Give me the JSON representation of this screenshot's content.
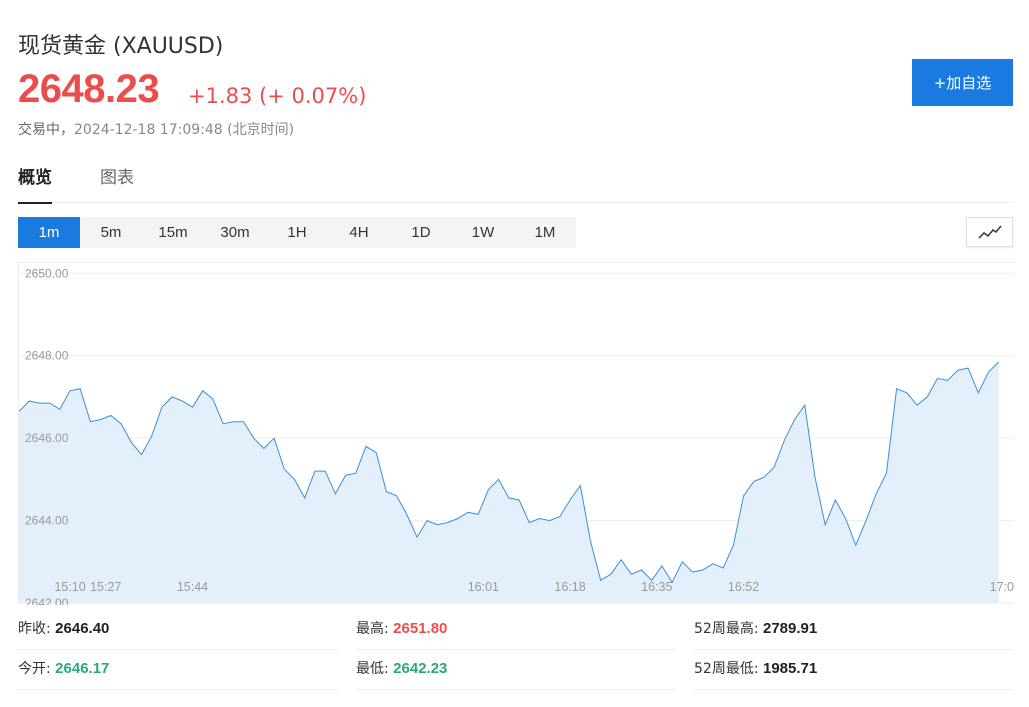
{
  "header": {
    "title": "现货黄金 (XAUUSD)",
    "price": "2648.23",
    "change": "+1.83 (+ 0.07%)",
    "status_label": "交易中，",
    "timestamp": "2024-12-18 17:09:48 (北京时间)",
    "add_button": "+加自选"
  },
  "tabs": [
    {
      "label": "概览",
      "active": true
    },
    {
      "label": "图表",
      "active": false
    }
  ],
  "periods": [
    {
      "label": "1m",
      "active": true
    },
    {
      "label": "5m"
    },
    {
      "label": "15m"
    },
    {
      "label": "30m"
    },
    {
      "label": "1H"
    },
    {
      "label": "4H"
    },
    {
      "label": "1D"
    },
    {
      "label": "1W"
    },
    {
      "label": "1M"
    }
  ],
  "chart_type_icon": "line-chart-icon",
  "colors": {
    "up": "#eb4d4d",
    "down": "#2ca77e",
    "accent": "#1a7ae0",
    "line": "#3a8fd6",
    "area": "#e3f0fc"
  },
  "chart_data": {
    "type": "area",
    "ylim": [
      2642.0,
      2650.25
    ],
    "y_ticks": [
      "2650.00",
      "2648.00",
      "2646.00",
      "2644.00",
      "2642.00"
    ],
    "y_tick_values": [
      2650,
      2648,
      2646,
      2644,
      2642
    ],
    "x_ticks": [
      "15:10",
      "15:27",
      "15:44",
      "16:01",
      "16:18",
      "16:35",
      "16:52",
      "17:0"
    ],
    "x_range": [
      15.1,
      17.05
    ],
    "grid": true,
    "series": [
      {
        "points": [
          [
            15.1,
            2646.65
          ],
          [
            15.12,
            2646.9
          ],
          [
            15.14,
            2646.85
          ],
          [
            15.16,
            2646.85
          ],
          [
            15.18,
            2646.7
          ],
          [
            15.2,
            2647.15
          ],
          [
            15.22,
            2647.2
          ],
          [
            15.24,
            2646.4
          ],
          [
            15.26,
            2646.45
          ],
          [
            15.28,
            2646.55
          ],
          [
            15.3,
            2646.35
          ],
          [
            15.32,
            2645.9
          ],
          [
            15.34,
            2645.6
          ],
          [
            15.36,
            2646.05
          ],
          [
            15.38,
            2646.75
          ],
          [
            15.4,
            2647.0
          ],
          [
            15.42,
            2646.9
          ],
          [
            15.44,
            2646.75
          ],
          [
            15.46,
            2647.15
          ],
          [
            15.48,
            2646.95
          ],
          [
            15.5,
            2646.35
          ],
          [
            15.52,
            2646.4
          ],
          [
            15.54,
            2646.4
          ],
          [
            15.56,
            2646.0
          ],
          [
            15.58,
            2645.75
          ],
          [
            15.6,
            2646.0
          ],
          [
            15.62,
            2645.25
          ],
          [
            15.64,
            2645.0
          ],
          [
            15.66,
            2644.55
          ],
          [
            15.68,
            2645.2
          ],
          [
            15.7,
            2645.2
          ],
          [
            15.72,
            2644.65
          ],
          [
            15.74,
            2645.1
          ],
          [
            15.76,
            2645.15
          ],
          [
            15.78,
            2645.8
          ],
          [
            15.8,
            2645.65
          ],
          [
            15.82,
            2644.7
          ],
          [
            15.84,
            2644.6
          ],
          [
            15.86,
            2644.15
          ],
          [
            15.88,
            2643.6
          ],
          [
            15.9,
            2644.0
          ],
          [
            15.92,
            2643.9
          ],
          [
            15.94,
            2643.95
          ],
          [
            15.96,
            2644.05
          ],
          [
            15.98,
            2644.2
          ],
          [
            16.0,
            2644.15
          ],
          [
            16.02,
            2644.75
          ],
          [
            16.04,
            2645.0
          ],
          [
            16.06,
            2644.55
          ],
          [
            16.08,
            2644.5
          ],
          [
            16.1,
            2643.95
          ],
          [
            16.12,
            2644.05
          ],
          [
            16.14,
            2644.0
          ],
          [
            16.16,
            2644.1
          ],
          [
            16.18,
            2644.5
          ],
          [
            16.2,
            2644.85
          ],
          [
            16.22,
            2643.5
          ],
          [
            16.24,
            2642.55
          ],
          [
            16.26,
            2642.7
          ],
          [
            16.28,
            2643.05
          ],
          [
            16.3,
            2642.7
          ],
          [
            16.32,
            2642.8
          ],
          [
            16.34,
            2642.55
          ],
          [
            16.36,
            2642.9
          ],
          [
            16.38,
            2642.5
          ],
          [
            16.4,
            2643.0
          ],
          [
            16.42,
            2642.75
          ],
          [
            16.44,
            2642.8
          ],
          [
            16.46,
            2642.95
          ],
          [
            16.48,
            2642.85
          ],
          [
            16.5,
            2643.4
          ],
          [
            16.52,
            2644.6
          ],
          [
            16.54,
            2644.95
          ],
          [
            16.56,
            2645.05
          ],
          [
            16.58,
            2645.3
          ],
          [
            16.6,
            2645.95
          ],
          [
            16.62,
            2646.45
          ],
          [
            16.64,
            2646.8
          ],
          [
            16.66,
            2645.05
          ],
          [
            16.68,
            2643.9
          ],
          [
            16.7,
            2644.5
          ],
          [
            16.72,
            2644.05
          ],
          [
            16.74,
            2643.4
          ],
          [
            16.76,
            2644.0
          ],
          [
            16.78,
            2644.65
          ],
          [
            16.8,
            2645.15
          ],
          [
            16.82,
            2647.2
          ],
          [
            16.84,
            2647.1
          ],
          [
            16.86,
            2646.8
          ],
          [
            16.88,
            2647.0
          ],
          [
            16.9,
            2647.45
          ],
          [
            16.92,
            2647.4
          ],
          [
            16.94,
            2647.65
          ],
          [
            16.96,
            2647.7
          ],
          [
            16.98,
            2647.1
          ],
          [
            17.0,
            2647.6
          ],
          [
            17.02,
            2647.85
          ]
        ]
      }
    ]
  },
  "stats": [
    {
      "label": "昨收:",
      "value": "2646.40",
      "tone": "neutral"
    },
    {
      "label": "最高:",
      "value": "2651.80",
      "tone": "up"
    },
    {
      "label": "52周最高:",
      "value": "2789.91",
      "tone": "neutral"
    },
    {
      "label": "今开:",
      "value": "2646.17",
      "tone": "down"
    },
    {
      "label": "最低:",
      "value": "2642.23",
      "tone": "down"
    },
    {
      "label": "52周最低:",
      "value": "1985.71",
      "tone": "neutral"
    }
  ]
}
